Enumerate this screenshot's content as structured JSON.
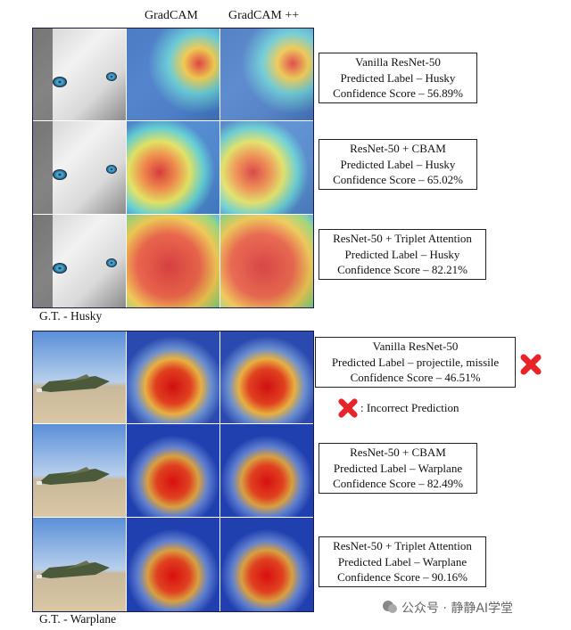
{
  "headers": {
    "gradcam": "GradCAM",
    "gradcampp": "GradCAM ++"
  },
  "husky": {
    "gt_label": "G.T. - Husky",
    "rows": [
      {
        "model": "Vanilla ResNet-50",
        "predicted": "Predicted Label – Husky",
        "confidence": "Confidence Score – 56.89%"
      },
      {
        "model": "ResNet-50 + CBAM",
        "predicted": "Predicted Label – Husky",
        "confidence": "Confidence Score – 65.02%"
      },
      {
        "model": "ResNet-50 + Triplet Attention",
        "predicted": "Predicted Label – Husky",
        "confidence": "Confidence Score – 82.21%"
      }
    ]
  },
  "warplane": {
    "gt_label": "G.T. - Warplane",
    "rows": [
      {
        "model": "Vanilla ResNet-50",
        "predicted": "Predicted Label – projectile, missile",
        "confidence": "Confidence Score – 46.51%",
        "incorrect": true
      },
      {
        "model": "ResNet-50 + CBAM",
        "predicted": "Predicted Label – Warplane",
        "confidence": "Confidence Score – 82.49%"
      },
      {
        "model": "ResNet-50 + Triplet Attention",
        "predicted": "Predicted Label – Warplane",
        "confidence": "Confidence Score – 90.16%"
      }
    ]
  },
  "legend": {
    "incorrect_label": ": Incorrect Prediction",
    "marker_color": "#e8232a"
  },
  "watermark": {
    "text": "公众号 · 静静AI学堂"
  }
}
